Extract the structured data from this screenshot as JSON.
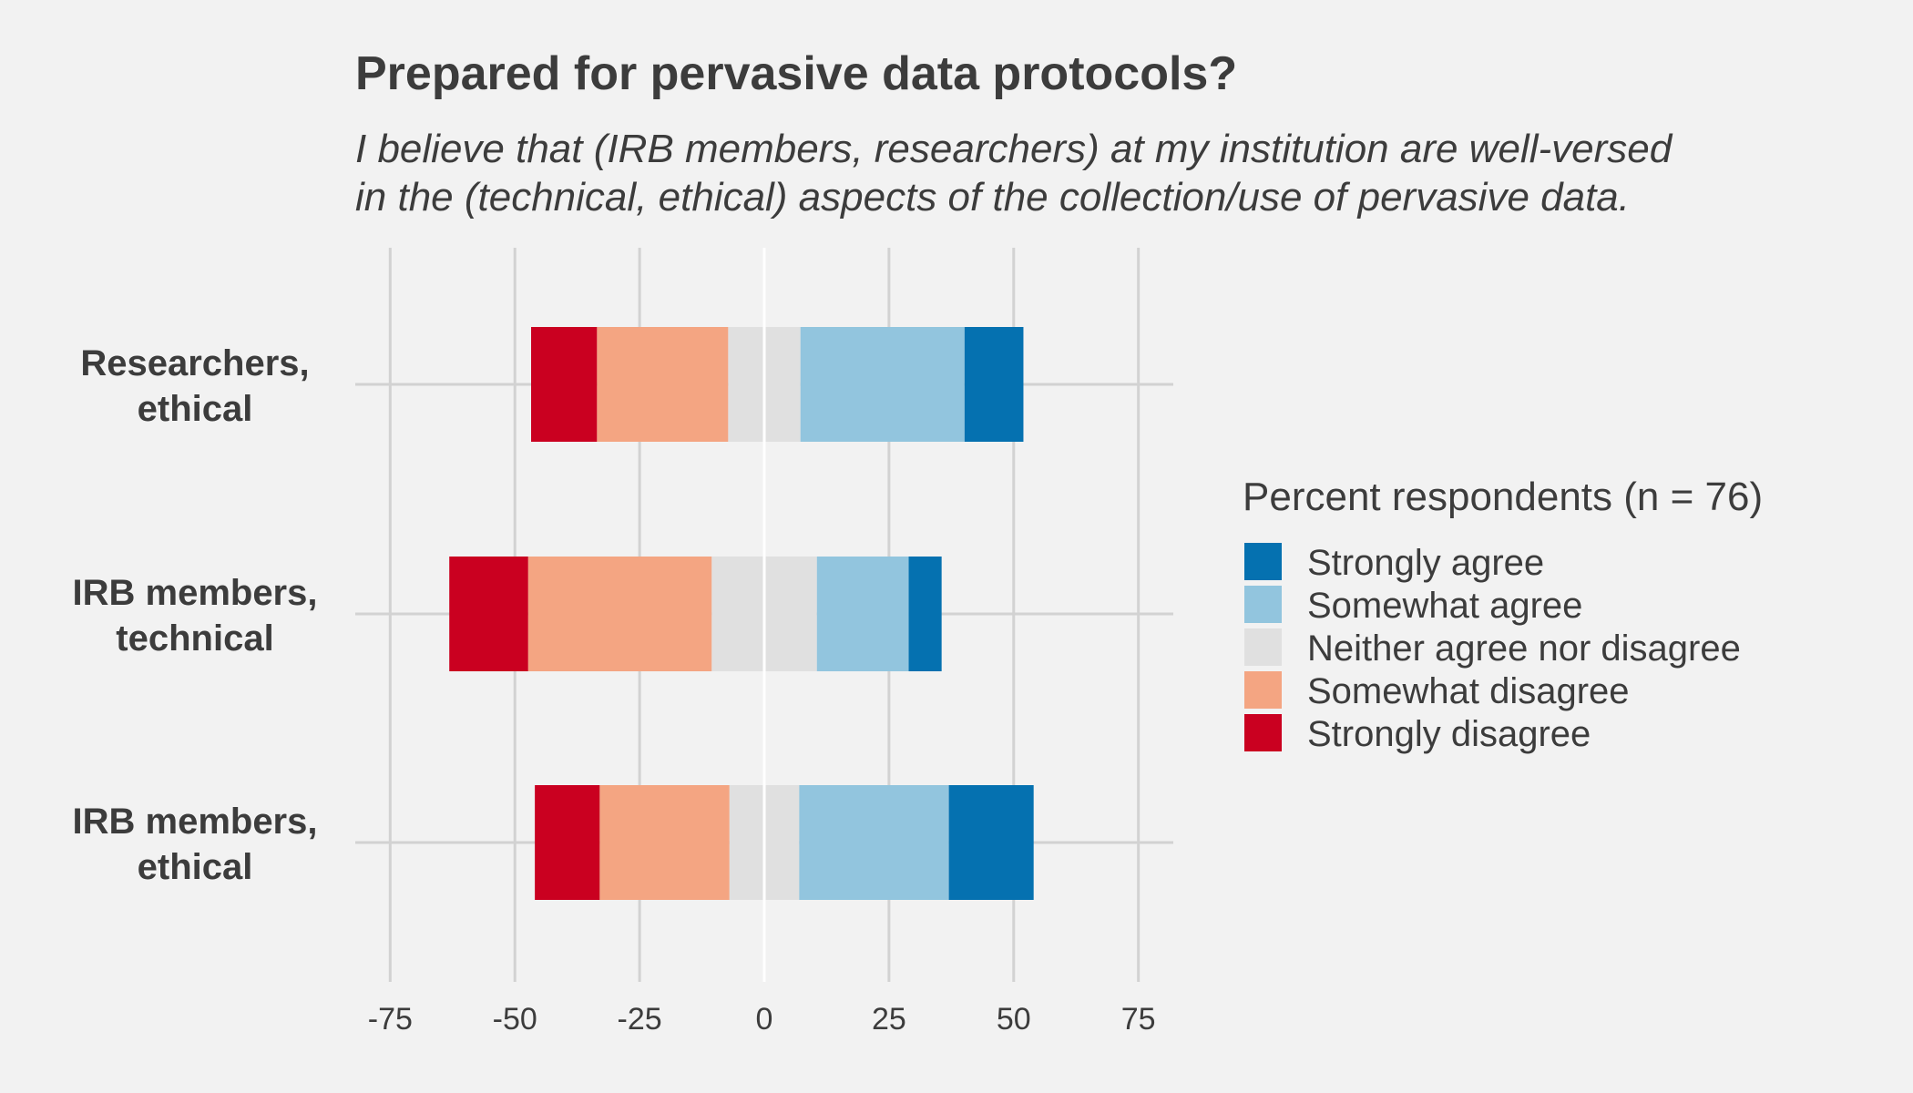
{
  "chart_data": {
    "type": "diverging_bar",
    "title": "Prepared for pervasive data protocols?",
    "subtitle": "I believe that (IRB members, researchers) at my institution are well-versed\nin the (technical, ethical) aspects of the collection/use of pervasive data.",
    "categories": [
      "Researchers,\nethical",
      "IRB members,\ntechnical",
      "IRB members,\nethical"
    ],
    "neutral_series": 2,
    "series": [
      {
        "name": "Strongly disagree",
        "color": "#ca0020",
        "values": [
          13.2,
          15.8,
          13
        ]
      },
      {
        "name": "Somewhat disagree",
        "color": "#f4a582",
        "values": [
          26.3,
          36.8,
          26
        ]
      },
      {
        "name": "Neither agree nor disagree",
        "color": "#e0e0e0",
        "values": [
          14.5,
          21.1,
          14
        ]
      },
      {
        "name": "Somewhat agree",
        "color": "#92c5de",
        "values": [
          32.9,
          18.4,
          30
        ]
      },
      {
        "name": "Strongly agree",
        "color": "#0571b0",
        "values": [
          11.8,
          6.6,
          17
        ]
      }
    ],
    "legend_title": "Percent respondents (n = 76)",
    "xlim": [
      -82,
      82
    ],
    "xticks": [
      -75,
      -50,
      -25,
      0,
      25,
      50,
      75
    ],
    "grid": true
  }
}
